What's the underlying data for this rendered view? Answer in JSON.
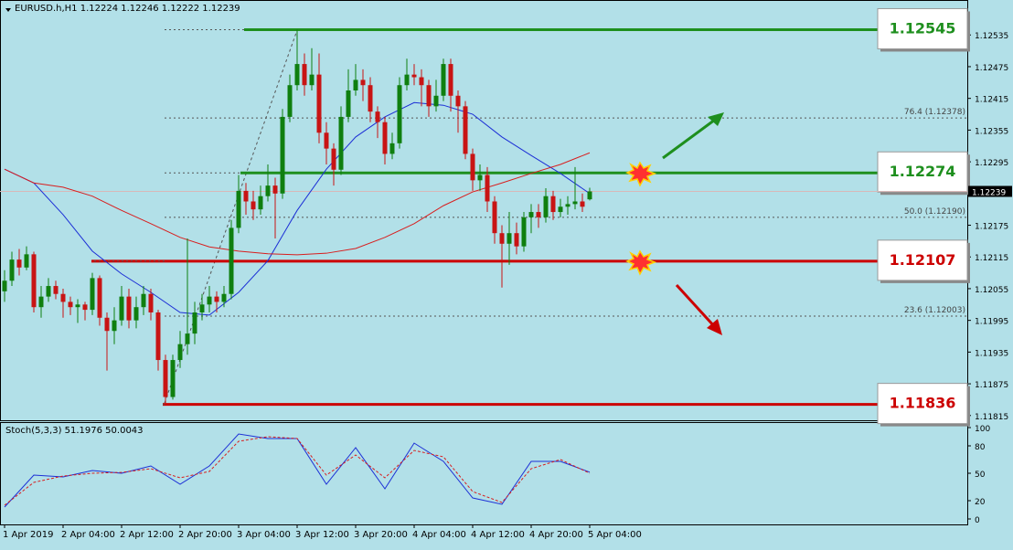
{
  "chart_data": [
    {
      "type": "candlestick",
      "title": "EURUSD.h,H1 1.12224 1.12246 1.12222 1.12239",
      "categories": [
        "1 Apr 2019",
        null,
        null,
        null,
        null,
        null,
        null,
        null,
        "2 Apr 04:00",
        null,
        null,
        null,
        null,
        null,
        null,
        null,
        "2 Apr 12:00",
        null,
        null,
        null,
        null,
        null,
        null,
        null,
        "2 Apr 20:00",
        null,
        null,
        null,
        null,
        null,
        null,
        null,
        "3 Apr 04:00",
        null,
        null,
        null,
        null,
        null,
        null,
        null,
        "3 Apr 12:00",
        null,
        null,
        null,
        null,
        null,
        null,
        null,
        "3 Apr 20:00",
        null,
        null,
        null,
        null,
        null,
        null,
        null,
        "4 Apr 04:00",
        null,
        null,
        null,
        null,
        null,
        null,
        null,
        "4 Apr 12:00",
        null,
        null,
        null,
        null,
        null,
        null,
        null,
        "4 Apr 20:00",
        null,
        null,
        null,
        null,
        null,
        null,
        null,
        "5 Apr 04:00"
      ],
      "open": [
        1.1205,
        1.1207,
        1.1211,
        1.12095,
        1.1212,
        1.1202,
        1.1204,
        1.1206,
        1.12045,
        1.1203,
        1.1202,
        1.12025,
        1.12015,
        1.12075,
        1.12,
        1.11975,
        1.11995,
        1.1204,
        1.11995,
        1.1202,
        1.12045,
        1.1201,
        1.1192,
        1.1185,
        1.1192,
        1.1195,
        1.1197,
        1.1201,
        1.12025,
        1.1204,
        1.1203,
        1.12045,
        1.1217,
        1.1224,
        1.1222,
        1.12205,
        1.1223,
        1.1225,
        1.12235,
        1.1238,
        1.1244,
        1.1248,
        1.1244,
        1.1246,
        1.1235,
        1.1232,
        1.1228,
        1.1238,
        1.1243,
        1.1245,
        1.1244,
        1.1239,
        1.1237,
        1.1231,
        1.1233,
        1.1244,
        1.1246,
        1.12455,
        1.1244,
        1.124,
        1.1242,
        1.1248,
        1.1242,
        1.124,
        1.1231,
        1.1226,
        1.1227,
        1.1222,
        1.1216,
        1.1214,
        1.1216,
        1.12135,
        1.1219,
        1.122,
        1.1219,
        1.1223,
        1.122,
        1.1221,
        1.12215,
        1.1222,
        1.12224
      ],
      "high": [
        1.1209,
        1.12125,
        1.1213,
        1.12135,
        1.12125,
        1.1206,
        1.12075,
        1.1207,
        1.12055,
        1.1204,
        1.12035,
        1.1203,
        1.12085,
        1.1208,
        1.1201,
        1.1202,
        1.1206,
        1.12055,
        1.1204,
        1.1206,
        1.12055,
        1.12015,
        1.1193,
        1.1193,
        1.11975,
        1.1215,
        1.1203,
        1.12045,
        1.1206,
        1.1205,
        1.1206,
        1.12185,
        1.1227,
        1.12255,
        1.1224,
        1.1225,
        1.1229,
        1.12265,
        1.12395,
        1.1246,
        1.12545,
        1.125,
        1.1251,
        1.125,
        1.1237,
        1.1233,
        1.124,
        1.1247,
        1.1248,
        1.1247,
        1.12455,
        1.124,
        1.1238,
        1.1235,
        1.12455,
        1.1249,
        1.1248,
        1.1247,
        1.1245,
        1.1245,
        1.1249,
        1.1249,
        1.1243,
        1.1241,
        1.1232,
        1.1229,
        1.12285,
        1.1223,
        1.12175,
        1.122,
        1.1218,
        1.122,
        1.12215,
        1.12215,
        1.12245,
        1.1224,
        1.12225,
        1.1223,
        1.12285,
        1.12235,
        1.12246
      ],
      "low": [
        1.1203,
        1.1206,
        1.1208,
        1.1209,
        1.1201,
        1.12,
        1.1203,
        1.12035,
        1.12,
        1.12005,
        1.1199,
        1.11995,
        1.12005,
        1.11985,
        1.119,
        1.1195,
        1.11985,
        1.1198,
        1.1198,
        1.12005,
        1.11995,
        1.119,
        1.11836,
        1.11845,
        1.11905,
        1.1193,
        1.1195,
        1.11995,
        1.1201,
        1.1201,
        1.1202,
        1.12035,
        1.1216,
        1.12195,
        1.12185,
        1.12195,
        1.1222,
        1.1215,
        1.12225,
        1.1237,
        1.1243,
        1.1242,
        1.1243,
        1.1233,
        1.1229,
        1.1225,
        1.1227,
        1.1237,
        1.1242,
        1.1241,
        1.1237,
        1.1234,
        1.1229,
        1.123,
        1.1232,
        1.1243,
        1.1244,
        1.124,
        1.1238,
        1.1239,
        1.1241,
        1.1239,
        1.1235,
        1.123,
        1.1224,
        1.1224,
        1.122,
        1.1214,
        1.12057,
        1.121,
        1.1212,
        1.12125,
        1.1216,
        1.1217,
        1.1218,
        1.12185,
        1.1219,
        1.12195,
        1.12205,
        1.122,
        1.12222
      ],
      "close": [
        1.1207,
        1.1211,
        1.12095,
        1.1212,
        1.1202,
        1.1204,
        1.1206,
        1.12045,
        1.1203,
        1.1202,
        1.12025,
        1.12015,
        1.12075,
        1.12,
        1.11975,
        1.11995,
        1.1204,
        1.11995,
        1.1202,
        1.12045,
        1.1201,
        1.1192,
        1.1185,
        1.1192,
        1.1195,
        1.1197,
        1.1201,
        1.12025,
        1.1204,
        1.1203,
        1.12045,
        1.1217,
        1.1224,
        1.1222,
        1.12205,
        1.1223,
        1.1225,
        1.12235,
        1.1238,
        1.1244,
        1.1248,
        1.1244,
        1.1246,
        1.1235,
        1.1232,
        1.1228,
        1.1238,
        1.1243,
        1.1245,
        1.1244,
        1.1239,
        1.1237,
        1.1231,
        1.1233,
        1.1244,
        1.1246,
        1.12455,
        1.1244,
        1.124,
        1.1242,
        1.1248,
        1.1242,
        1.124,
        1.1231,
        1.1226,
        1.1227,
        1.1222,
        1.1216,
        1.1214,
        1.1216,
        1.12135,
        1.1219,
        1.122,
        1.1219,
        1.1223,
        1.122,
        1.1221,
        1.12215,
        1.1222,
        1.1221,
        1.12239
      ],
      "up_color": "#0f7f0f",
      "down_color": "#c81414",
      "series": [
        {
          "color": "#1c2fd6",
          "x": [
            0,
            4,
            8,
            12,
            16,
            20,
            24,
            28,
            32,
            36,
            40,
            44,
            48,
            52,
            56,
            60,
            64,
            68,
            72,
            76,
            80
          ],
          "values": [
            1.12281,
            1.12255,
            1.12195,
            1.12126,
            1.12083,
            1.12048,
            1.1201,
            1.12005,
            1.12048,
            1.12108,
            1.12203,
            1.12281,
            1.12342,
            1.1238,
            1.12407,
            1.12402,
            1.12385,
            1.12342,
            1.12307,
            1.12273,
            1.12235
          ]
        },
        {
          "color": "#d81e1e",
          "x": [
            0,
            4,
            8,
            12,
            16,
            20,
            24,
            28,
            32,
            36,
            40,
            44,
            48,
            52,
            56,
            60,
            64,
            68,
            72,
            76,
            80
          ],
          "values": [
            1.12281,
            1.12255,
            1.12247,
            1.1223,
            1.12203,
            1.12178,
            1.12152,
            1.12134,
            1.12126,
            1.12121,
            1.12119,
            1.12122,
            1.12131,
            1.12152,
            1.12178,
            1.12212,
            1.12238,
            1.12255,
            1.12273,
            1.1229,
            1.12312
          ]
        }
      ],
      "levels": [
        {
          "value": 1.12545,
          "color": "#1e8f1e"
        },
        {
          "value": 1.12274,
          "color": "#1e8f1e"
        },
        {
          "value": 1.12107,
          "color": "#cc0000"
        },
        {
          "value": 1.11836,
          "color": "#cc0000"
        }
      ],
      "fib_levels": [
        {
          "label": "76.4 (1.12378)",
          "value": 1.12378
        },
        {
          "label": "50.0 (1.12190)",
          "value": 1.1219
        },
        {
          "label": "23.6 (1.12003)",
          "value": 1.12003
        }
      ],
      "last_price": 1.12239,
      "ylim": [
        1.11806,
        1.1257
      ],
      "yticks": [
        1.12535,
        1.12475,
        1.12415,
        1.12355,
        1.12295,
        1.12175,
        1.12115,
        1.12055,
        1.11995,
        1.11935,
        1.11875,
        1.11815
      ]
    },
    {
      "type": "line",
      "title": "Stoch(5,3,3) 51.1976 50.0043",
      "series": [
        {
          "color": "#1c2fd6",
          "x": [
            0,
            4,
            8,
            12,
            16,
            20,
            24,
            28,
            32,
            36,
            40,
            44,
            48,
            52,
            56,
            60,
            64,
            68,
            72,
            76,
            80
          ],
          "values": [
            13,
            48,
            46,
            53,
            50,
            58,
            38,
            58,
            93,
            88,
            88,
            38,
            78,
            33,
            83,
            63,
            23,
            16,
            63,
            63,
            51.1976
          ]
        },
        {
          "color": "#d81e1e",
          "dashed": true,
          "x": [
            0,
            4,
            8,
            12,
            16,
            20,
            24,
            28,
            32,
            36,
            40,
            44,
            48,
            52,
            56,
            60,
            64,
            68,
            72,
            76,
            80
          ],
          "values": [
            15,
            40,
            47,
            50,
            51,
            55,
            45,
            52,
            85,
            90,
            88,
            48,
            70,
            45,
            75,
            68,
            30,
            18,
            55,
            65,
            50.0043
          ]
        }
      ],
      "ylim": [
        -5,
        105
      ],
      "yticks": [
        100,
        80,
        50,
        20,
        0
      ]
    }
  ]
}
